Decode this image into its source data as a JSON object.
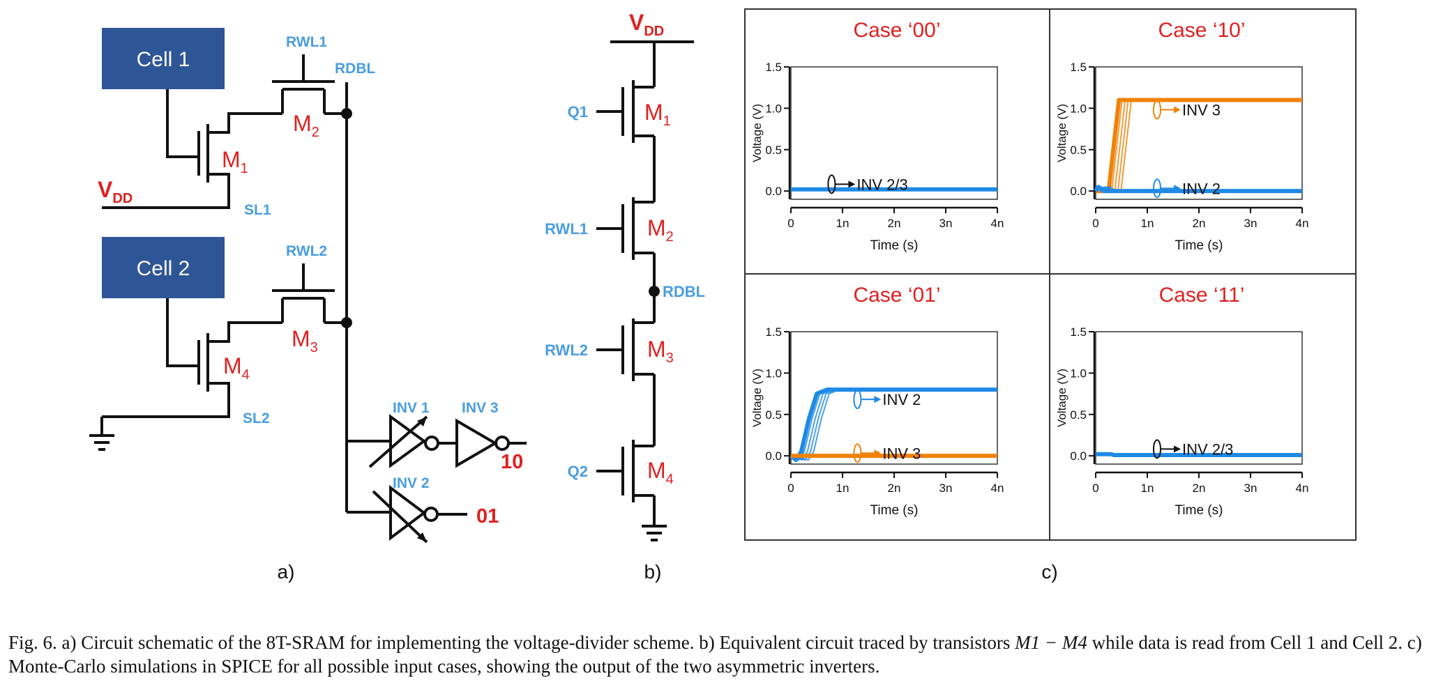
{
  "panel_a": {
    "cell1": "Cell 1",
    "cell2": "Cell 2",
    "rwl1": "RWL1",
    "rwl2": "RWL2",
    "rdbl": "RDBL",
    "vdd": "V",
    "vdd_sub": "DD",
    "sl1": "SL1",
    "sl2": "SL2",
    "m1": "M",
    "m1_sub": "1",
    "m2": "M",
    "m2_sub": "2",
    "m3": "M",
    "m3_sub": "3",
    "m4": "M",
    "m4_sub": "4",
    "inv1": "INV 1",
    "inv2": "INV 2",
    "inv3": "INV 3",
    "out10": "10",
    "out01": "01",
    "label": "a)"
  },
  "panel_b": {
    "vdd": "V",
    "vdd_sub": "DD",
    "q1": "Q1",
    "rwl1": "RWL1",
    "rwl2": "RWL2",
    "q2": "Q2",
    "rdbl": "RDBL",
    "m1": "M",
    "m1_sub": "1",
    "m2": "M",
    "m2_sub": "2",
    "m3": "M",
    "m3_sub": "3",
    "m4": "M",
    "m4_sub": "4",
    "label": "b)"
  },
  "panel_c": {
    "label": "c)"
  },
  "colors": {
    "blue_trace": "#1f8ae6",
    "orange_trace": "#f0820a",
    "label_red": "#e02020",
    "label_blue": "#4a9de0",
    "cell_box": "#2e5596"
  },
  "chart_data": [
    {
      "type": "line",
      "title": "Case ‘00’",
      "xlabel": "Time (s)",
      "ylabel": "Voltage (V)",
      "xticks": [
        "0",
        "1n",
        "2n",
        "3n",
        "4n"
      ],
      "yticks": [
        "0.0",
        "0.5",
        "1.0",
        "1.5"
      ],
      "xlim": [
        0,
        4
      ],
      "ylim": [
        -0.1,
        1.5
      ],
      "series": [
        {
          "name": "INV 2/3",
          "color": "#1f8ae6",
          "x": [
            0,
            4
          ],
          "y": [
            0.02,
            0.02
          ]
        }
      ],
      "annotations": [
        {
          "text": "INV 2/3",
          "x": 1.6,
          "y": 0.15
        }
      ]
    },
    {
      "type": "line",
      "title": "Case ‘10’",
      "xlabel": "Time (s)",
      "ylabel": "Voltage (V)",
      "xticks": [
        "0",
        "1n",
        "2n",
        "3n",
        "4n"
      ],
      "yticks": [
        "0.0",
        "0.5",
        "1.0",
        "1.5"
      ],
      "xlim": [
        0,
        4
      ],
      "ylim": [
        -0.1,
        1.5
      ],
      "series": [
        {
          "name": "INV 3",
          "color": "#f0820a",
          "x": [
            0,
            0.25,
            0.45,
            0.75,
            4
          ],
          "y": [
            0,
            0,
            1.1,
            1.1,
            1.1
          ]
        },
        {
          "name": "INV 2",
          "color": "#1f8ae6",
          "x": [
            0,
            0.05,
            0.15,
            4
          ],
          "y": [
            0,
            0.05,
            0,
            0
          ]
        }
      ],
      "annotations": [
        {
          "text": "INV 3",
          "x": 2.0,
          "y": 1.05
        },
        {
          "text": "INV 2",
          "x": 2.0,
          "y": 0.1
        }
      ]
    },
    {
      "type": "line",
      "title": "Case ‘01’",
      "xlabel": "Time (s)",
      "ylabel": "Voltage (V)",
      "xticks": [
        "0",
        "1n",
        "2n",
        "3n",
        "4n"
      ],
      "yticks": [
        "0.0",
        "0.5",
        "1.0",
        "1.5"
      ],
      "xlim": [
        0,
        4
      ],
      "ylim": [
        -0.1,
        1.5
      ],
      "series": [
        {
          "name": "INV 2",
          "color": "#1f8ae6",
          "x": [
            0,
            0.1,
            0.2,
            0.35,
            0.5,
            0.7,
            4
          ],
          "y": [
            0,
            -0.05,
            0.05,
            0.45,
            0.75,
            0.8,
            0.8
          ]
        },
        {
          "name": "INV 3",
          "color": "#f0820a",
          "x": [
            0,
            0.15,
            0.25,
            4
          ],
          "y": [
            0,
            0.0,
            0.0,
            0.0
          ]
        }
      ],
      "annotations": [
        {
          "text": "INV 2",
          "x": 2.1,
          "y": 0.75
        },
        {
          "text": "INV 3",
          "x": 2.1,
          "y": 0.1
        }
      ]
    },
    {
      "type": "line",
      "title": "Case ‘11’",
      "xlabel": "Time (s)",
      "ylabel": "Voltage (V)",
      "xticks": [
        "0",
        "1n",
        "2n",
        "3n",
        "4n"
      ],
      "yticks": [
        "0.0",
        "0.5",
        "1.0",
        "1.5"
      ],
      "xlim": [
        0,
        4
      ],
      "ylim": [
        -0.1,
        1.5
      ],
      "series": [
        {
          "name": "INV 2/3",
          "color": "#1f8ae6",
          "x": [
            0,
            0.3,
            0.35,
            4
          ],
          "y": [
            0.02,
            0.02,
            0.01,
            0.01
          ]
        }
      ],
      "annotations": [
        {
          "text": "INV 2/3",
          "x": 2.0,
          "y": 0.15
        }
      ]
    }
  ],
  "caption": {
    "p1": "Fig. 6.   a) Circuit schematic of the 8T-SRAM for implementing the voltage-divider scheme. b) Equivalent circuit traced by transistors ",
    "math": "M1 − M4",
    "p2": " while data is read from Cell 1 and Cell 2. c) Monte-Carlo simulations in SPICE for all possible input cases, showing the output of the two asymmetric inverters."
  }
}
